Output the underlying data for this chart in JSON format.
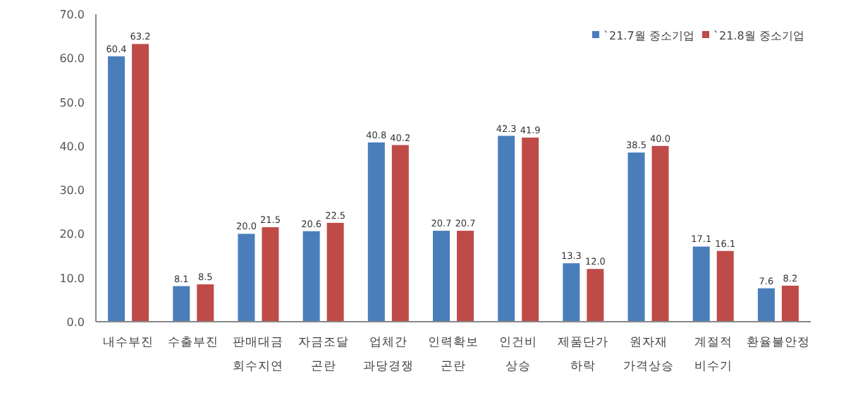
{
  "chart_data": {
    "type": "bar",
    "categories": [
      "내수부진",
      "수출부진",
      "판매대금 회수지연",
      "자금조달 곤란",
      "업체간 과당경쟁",
      "인력확보 곤란",
      "인건비 상승",
      "제품단가 하락",
      "원자재 가격상승",
      "계절적 비수기",
      "환율불안정"
    ],
    "series": [
      {
        "name": "`21.7월 중소기업",
        "color": "#4a7ebb",
        "values": [
          60.4,
          8.1,
          20.0,
          20.6,
          40.8,
          20.7,
          42.3,
          13.3,
          38.5,
          17.1,
          7.6
        ],
        "value_labels": [
          "60.4",
          "8.1",
          "20.0",
          "20.6",
          "40.8",
          "20.7",
          "42.3",
          "13.3",
          "38.5",
          "17.1",
          "7.6"
        ]
      },
      {
        "name": "`21.8월 중소기업",
        "color": "#be4b48",
        "values": [
          63.2,
          8.5,
          21.5,
          22.5,
          40.2,
          20.7,
          41.9,
          12.0,
          40.0,
          16.1,
          8.2
        ],
        "value_labels": [
          "63.2",
          "8.5",
          "21.5",
          "22.5",
          "40.2",
          "20.7",
          "41.9",
          "12.0",
          "40.0",
          "16.1",
          "8.2"
        ]
      }
    ],
    "ylim": [
      0,
      70
    ],
    "yticks": [
      {
        "value": 0,
        "label": "0.0"
      },
      {
        "value": 10,
        "label": "10.0"
      },
      {
        "value": 20,
        "label": "20.0"
      },
      {
        "value": 30,
        "label": "30.0"
      },
      {
        "value": 40,
        "label": "40.0"
      },
      {
        "value": 50,
        "label": "50.0"
      },
      {
        "value": 60,
        "label": "60.0"
      },
      {
        "value": 70,
        "label": "70.0"
      }
    ],
    "legend": "top right"
  }
}
